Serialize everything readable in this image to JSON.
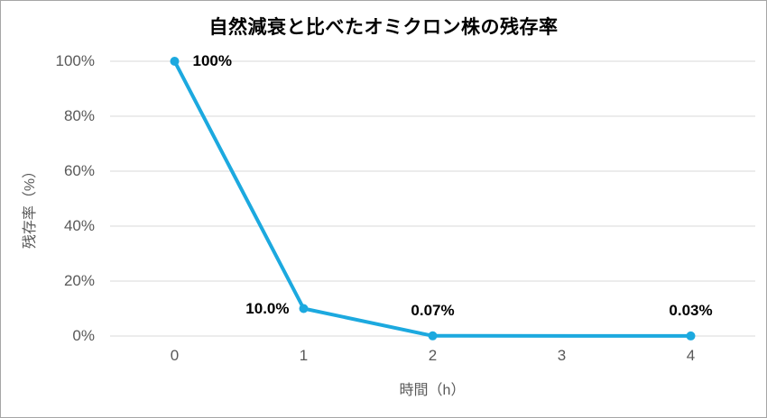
{
  "frame": {
    "border_color": "#a6a6a6",
    "background": "#ffffff"
  },
  "chart_data": {
    "type": "line",
    "title": "自然減衰と比べたオミクロン株の残存率",
    "xlabel": "時間（h）",
    "ylabel": "残存率（%）",
    "categories": [
      "0",
      "1",
      "2",
      "3",
      "4"
    ],
    "series": [
      {
        "color": "#1ca9df",
        "points": [
          {
            "x": 0,
            "y": 100,
            "label": "100%",
            "label_pos": "right"
          },
          {
            "x": 1,
            "y": 10.0,
            "label": "10.0%",
            "label_pos": "left"
          },
          {
            "x": 2,
            "y": 0.07,
            "label": "0.07%",
            "label_pos": "above"
          },
          {
            "x": 4,
            "y": 0.03,
            "label": "0.03%",
            "label_pos": "above"
          }
        ]
      }
    ],
    "y_ticks": [
      "0%",
      "20%",
      "40%",
      "60%",
      "80%",
      "100%"
    ],
    "y_tick_values": [
      0,
      20,
      40,
      60,
      80,
      100
    ],
    "ylim": [
      0,
      100
    ],
    "grid": "horizontal",
    "gridline_color": "#d9d9d9",
    "tick_color": "#595959",
    "label_color": "#000000",
    "legend": "none"
  }
}
